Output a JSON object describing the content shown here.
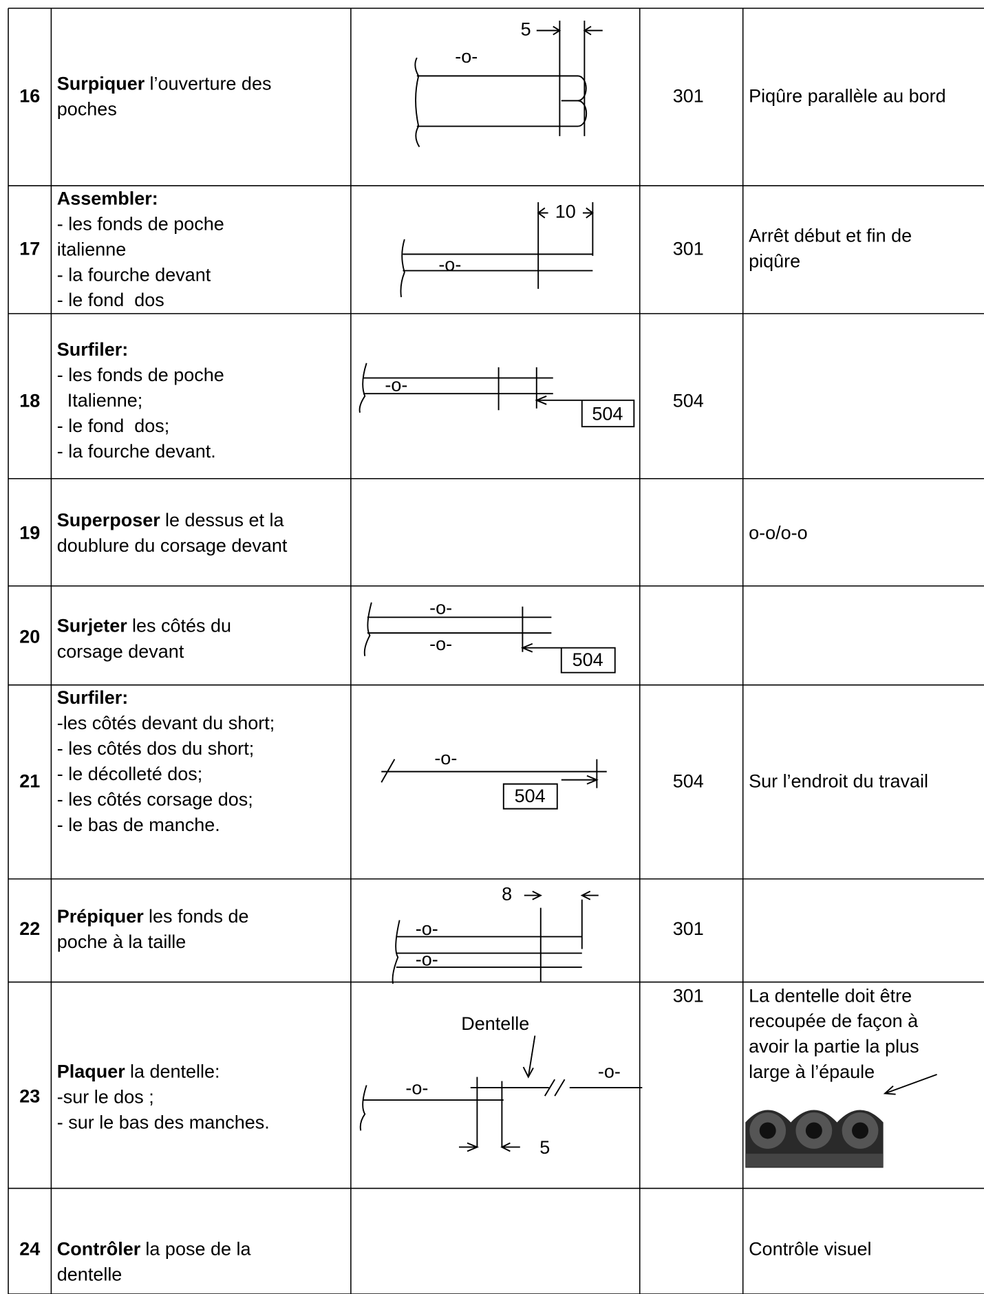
{
  "rows": [
    {
      "number": 16,
      "verb": "Surpiquer",
      "text": "l’ouverture des",
      "lines": [
        "poches"
      ],
      "diagram": [
        "-o-",
        "5"
      ],
      "stitch": 301,
      "note": [
        "Piqûre parallèle au bord"
      ]
    },
    {
      "number": 17,
      "verb": "Assembler:",
      "lines": [
        "- les fonds de poche",
        "italienne",
        "- la fourche devant",
        "- le fond  dos"
      ],
      "diagram": [
        "-o-",
        "10"
      ],
      "stitch": 301,
      "note": [
        "Arrêt début et fin de",
        "piqûre"
      ]
    },
    {
      "number": 18,
      "verb": "Surfiler:",
      "lines": [
        "- les fonds de poche",
        "  Italienne;",
        "- le fond  dos;",
        "- la fourche devant."
      ],
      "diagram": [
        "-o-",
        "504"
      ],
      "stitch": 504
    },
    {
      "number": 19,
      "verb": "Superposer",
      "text": "le dessus et la",
      "lines": [
        "doublure du corsage devant"
      ],
      "note": [
        "o-o/o-o"
      ]
    },
    {
      "number": 20,
      "verb": "Surjeter",
      "text": "les côtés du",
      "lines": [
        "corsage devant"
      ],
      "diagram": [
        "-o-",
        "-o-",
        "504"
      ]
    },
    {
      "number": 21,
      "verb": "Surfiler:",
      "lines": [
        "-les côtés devant du short;",
        "- les côtés dos du short;",
        "- le décolleté dos;",
        "- les côtés corsage dos;",
        "- le bas de manche."
      ],
      "diagram": [
        "-o-",
        "504"
      ],
      "stitch": 504,
      "note": [
        "Sur l’endroit du travail"
      ]
    },
    {
      "number": 22,
      "verb": "Prépiquer",
      "text": "les fonds de",
      "lines": [
        "poche à la taille"
      ],
      "diagram": [
        "8",
        "-o-",
        "-o-"
      ],
      "stitch": 301
    },
    {
      "number": 23,
      "verb": "Plaquer",
      "text": "la dentelle:",
      "lines": [
        "-sur le dos ;",
        "- sur le bas des manches."
      ],
      "diagram": [
        "Dentelle",
        "-o-",
        "-o-",
        "5"
      ],
      "stitch": 301,
      "note": [
        "La dentelle doit être",
        "recoupée de façon à",
        "avoir la partie la plus",
        "large à l’épaule"
      ]
    },
    {
      "number": 24,
      "verb": "Contrôler",
      "text": "la pose de la",
      "lines": [
        "dentelle"
      ],
      "note": [
        "Contrôle visuel"
      ]
    }
  ]
}
